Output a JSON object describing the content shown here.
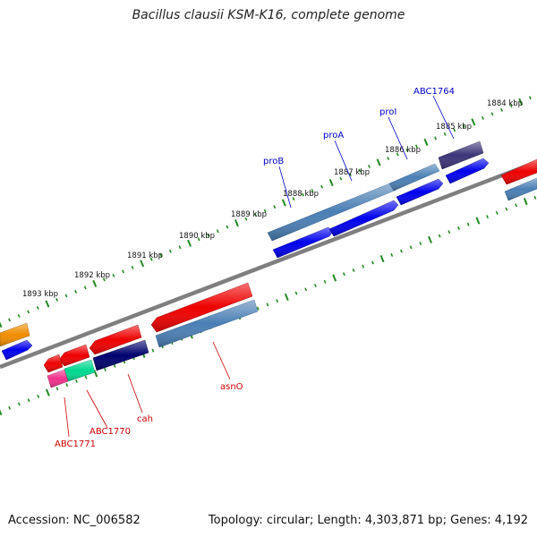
{
  "title": "Bacillus clausii KSM-K16, complete genome",
  "accession_text": "Accession: NC_006582",
  "topology_text": "Topology: circular; Length: 4,303,871 bp; Genes: 4,192",
  "colors": {
    "backbone": "#7f7f7f",
    "tick": "#228b22",
    "label_forward": "#0000cc",
    "label_reverse": "#cc0000",
    "gene_blue": "#0000ee",
    "gene_steel": "#4a7fb5",
    "gene_red": "#ee0000",
    "gene_navy": "#00006e",
    "gene_purple": "#3c3478",
    "gene_orange": "#f08c00",
    "gene_green": "#00d890",
    "gene_magenta": "#f0308c"
  },
  "kbp_labels": [
    "1884 kbp",
    "1885 kbp",
    "1886 kbp",
    "1887 kbp",
    "1888 kbp",
    "1889 kbp",
    "1890 kbp",
    "1891 kbp",
    "1892 kbp",
    "1893 kbp"
  ],
  "gene_labels_forward": [
    "proB",
    "proA",
    "proI",
    "ABC1764"
  ],
  "gene_labels_reverse": [
    "asnO",
    "cah",
    "ABC1770",
    "ABC1771"
  ]
}
